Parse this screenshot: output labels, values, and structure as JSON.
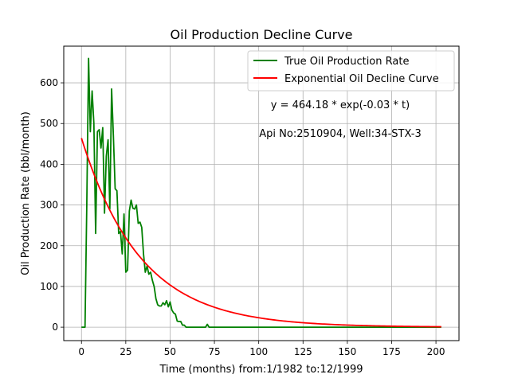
{
  "chart_data": {
    "type": "line",
    "title": "Oil Production Decline Curve",
    "xlabel": "Time (months) from:1/1982 to:12/1999",
    "ylabel": "Oil Production Rate (bbl/month)",
    "xlim": [
      -10,
      213
    ],
    "ylim": [
      -33,
      690
    ],
    "xticks": [
      0,
      25,
      50,
      75,
      100,
      125,
      150,
      175,
      200
    ],
    "yticks": [
      0,
      100,
      200,
      300,
      400,
      500,
      600
    ],
    "grid": true,
    "legend_position": "top-right",
    "annotations": {
      "equation": "y = 464.18 * exp(-0.03 * t)",
      "well": "Api No:2510904, Well:34-STX-3"
    },
    "series": [
      {
        "name": "True Oil Production Rate",
        "color": "#008000",
        "points": [
          [
            0,
            0
          ],
          [
            1,
            0
          ],
          [
            2,
            0
          ],
          [
            3,
            300
          ],
          [
            4,
            660
          ],
          [
            5,
            480
          ],
          [
            6,
            580
          ],
          [
            7,
            500
          ],
          [
            8,
            230
          ],
          [
            9,
            480
          ],
          [
            10,
            485
          ],
          [
            11,
            440
          ],
          [
            12,
            490
          ],
          [
            13,
            280
          ],
          [
            14,
            420
          ],
          [
            15,
            460
          ],
          [
            16,
            290
          ],
          [
            17,
            585
          ],
          [
            18,
            470
          ],
          [
            19,
            340
          ],
          [
            20,
            335
          ],
          [
            21,
            230
          ],
          [
            22,
            235
          ],
          [
            23,
            180
          ],
          [
            24,
            278
          ],
          [
            25,
            135
          ],
          [
            26,
            140
          ],
          [
            27,
            285
          ],
          [
            28,
            312
          ],
          [
            29,
            292
          ],
          [
            30,
            290
          ],
          [
            31,
            300
          ],
          [
            32,
            255
          ],
          [
            33,
            258
          ],
          [
            34,
            245
          ],
          [
            35,
            180
          ],
          [
            36,
            135
          ],
          [
            37,
            150
          ],
          [
            38,
            130
          ],
          [
            39,
            135
          ],
          [
            40,
            115
          ],
          [
            41,
            100
          ],
          [
            42,
            70
          ],
          [
            43,
            55
          ],
          [
            44,
            52
          ],
          [
            45,
            52
          ],
          [
            46,
            60
          ],
          [
            47,
            55
          ],
          [
            48,
            65
          ],
          [
            49,
            50
          ],
          [
            50,
            62
          ],
          [
            51,
            42
          ],
          [
            52,
            35
          ],
          [
            53,
            32
          ],
          [
            54,
            15
          ],
          [
            55,
            14
          ],
          [
            56,
            14
          ],
          [
            57,
            5
          ],
          [
            58,
            5
          ],
          [
            59,
            0
          ],
          [
            60,
            0
          ],
          [
            61,
            0
          ],
          [
            65,
            0
          ],
          [
            70,
            0
          ],
          [
            71,
            7
          ],
          [
            72,
            0
          ],
          [
            80,
            0
          ],
          [
            100,
            0
          ],
          [
            130,
            0
          ],
          [
            160,
            0
          ],
          [
            180,
            0
          ],
          [
            203,
            0
          ]
        ]
      },
      {
        "name": "Exponential Oil Decline Curve",
        "color": "#ff0000",
        "model": {
          "a": 464.18,
          "b": -0.03,
          "t_start": 0,
          "t_end": 203
        }
      }
    ]
  }
}
